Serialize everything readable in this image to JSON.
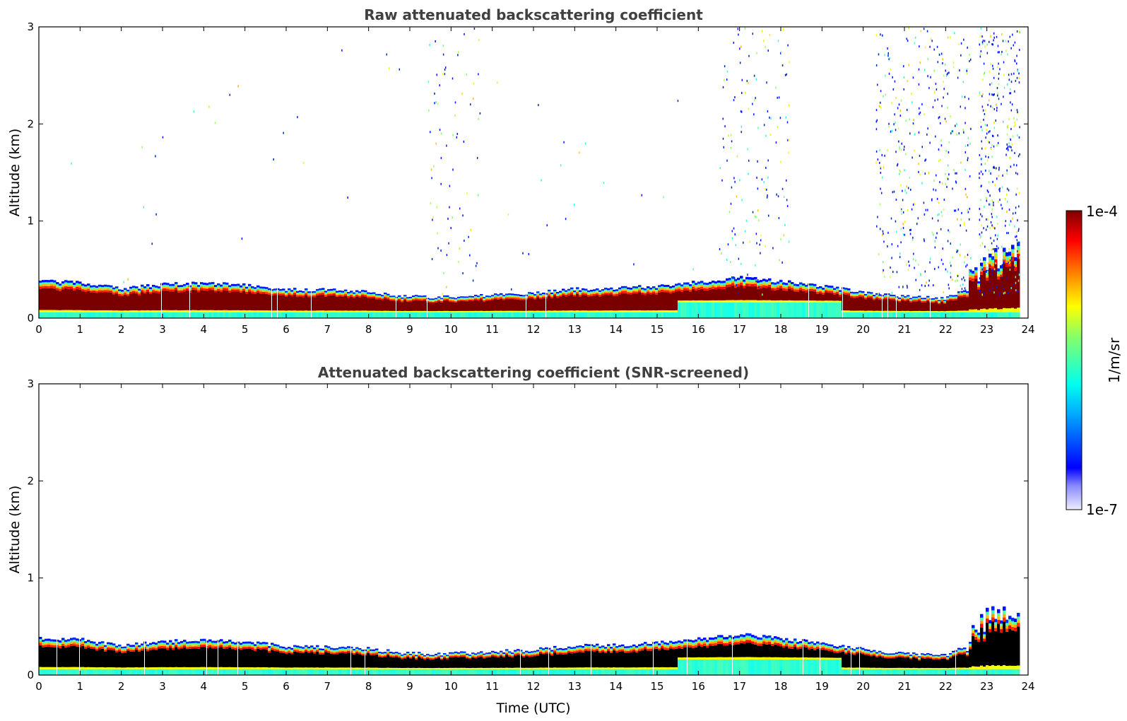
{
  "chart_data": [
    {
      "type": "heatmap",
      "title": "Raw attenuated backscattering coefficient",
      "xlabel": "",
      "ylabel": "Altitude (km)",
      "xlim": [
        0,
        24
      ],
      "ylim": [
        0,
        3
      ],
      "x_ticks": [
        "0",
        "1",
        "2",
        "3",
        "4",
        "5",
        "6",
        "7",
        "8",
        "9",
        "10",
        "11",
        "12",
        "13",
        "14",
        "15",
        "16",
        "17",
        "18",
        "19",
        "20",
        "21",
        "22",
        "23",
        "24"
      ],
      "y_ticks": [
        "0",
        "1",
        "2",
        "3"
      ],
      "layer_top_km": {
        "time": [
          0,
          1,
          2,
          3,
          4,
          5,
          6,
          7,
          8,
          9,
          10,
          11,
          12,
          13,
          14,
          15,
          16,
          17,
          18,
          19,
          20,
          21,
          22,
          22.5,
          23,
          23.8
        ],
        "top": [
          0.38,
          0.37,
          0.3,
          0.35,
          0.36,
          0.34,
          0.3,
          0.29,
          0.27,
          0.22,
          0.22,
          0.24,
          0.26,
          0.3,
          0.31,
          0.33,
          0.37,
          0.42,
          0.38,
          0.33,
          0.27,
          0.22,
          0.2,
          0.3,
          0.55,
          0.65
        ]
      },
      "noise_speckle": true
    },
    {
      "type": "heatmap",
      "title": "Attenuated backscattering coefficient (SNR-screened)",
      "xlabel": "Time (UTC)",
      "ylabel": "Altitude (km)",
      "xlim": [
        0,
        24
      ],
      "ylim": [
        0,
        3
      ],
      "x_ticks": [
        "0",
        "1",
        "2",
        "3",
        "4",
        "5",
        "6",
        "7",
        "8",
        "9",
        "10",
        "11",
        "12",
        "13",
        "14",
        "15",
        "16",
        "17",
        "18",
        "19",
        "20",
        "21",
        "22",
        "23",
        "24"
      ],
      "y_ticks": [
        "0",
        "1",
        "2",
        "3"
      ],
      "layer_top_km": {
        "time": [
          0,
          1,
          2,
          3,
          4,
          5,
          6,
          7,
          8,
          9,
          10,
          11,
          12,
          13,
          14,
          15,
          16,
          17,
          18,
          19,
          20,
          21,
          22,
          22.5,
          23,
          23.8
        ],
        "top": [
          0.38,
          0.37,
          0.3,
          0.35,
          0.36,
          0.34,
          0.3,
          0.29,
          0.27,
          0.22,
          0.22,
          0.24,
          0.26,
          0.3,
          0.31,
          0.33,
          0.37,
          0.42,
          0.38,
          0.33,
          0.27,
          0.22,
          0.2,
          0.3,
          0.55,
          0.65
        ]
      },
      "noise_speckle": false
    }
  ],
  "colorbar": {
    "label": "1/m/sr",
    "max_label": "1e-4",
    "min_label": "1e-7",
    "colormap": "jet",
    "scale": "log"
  }
}
